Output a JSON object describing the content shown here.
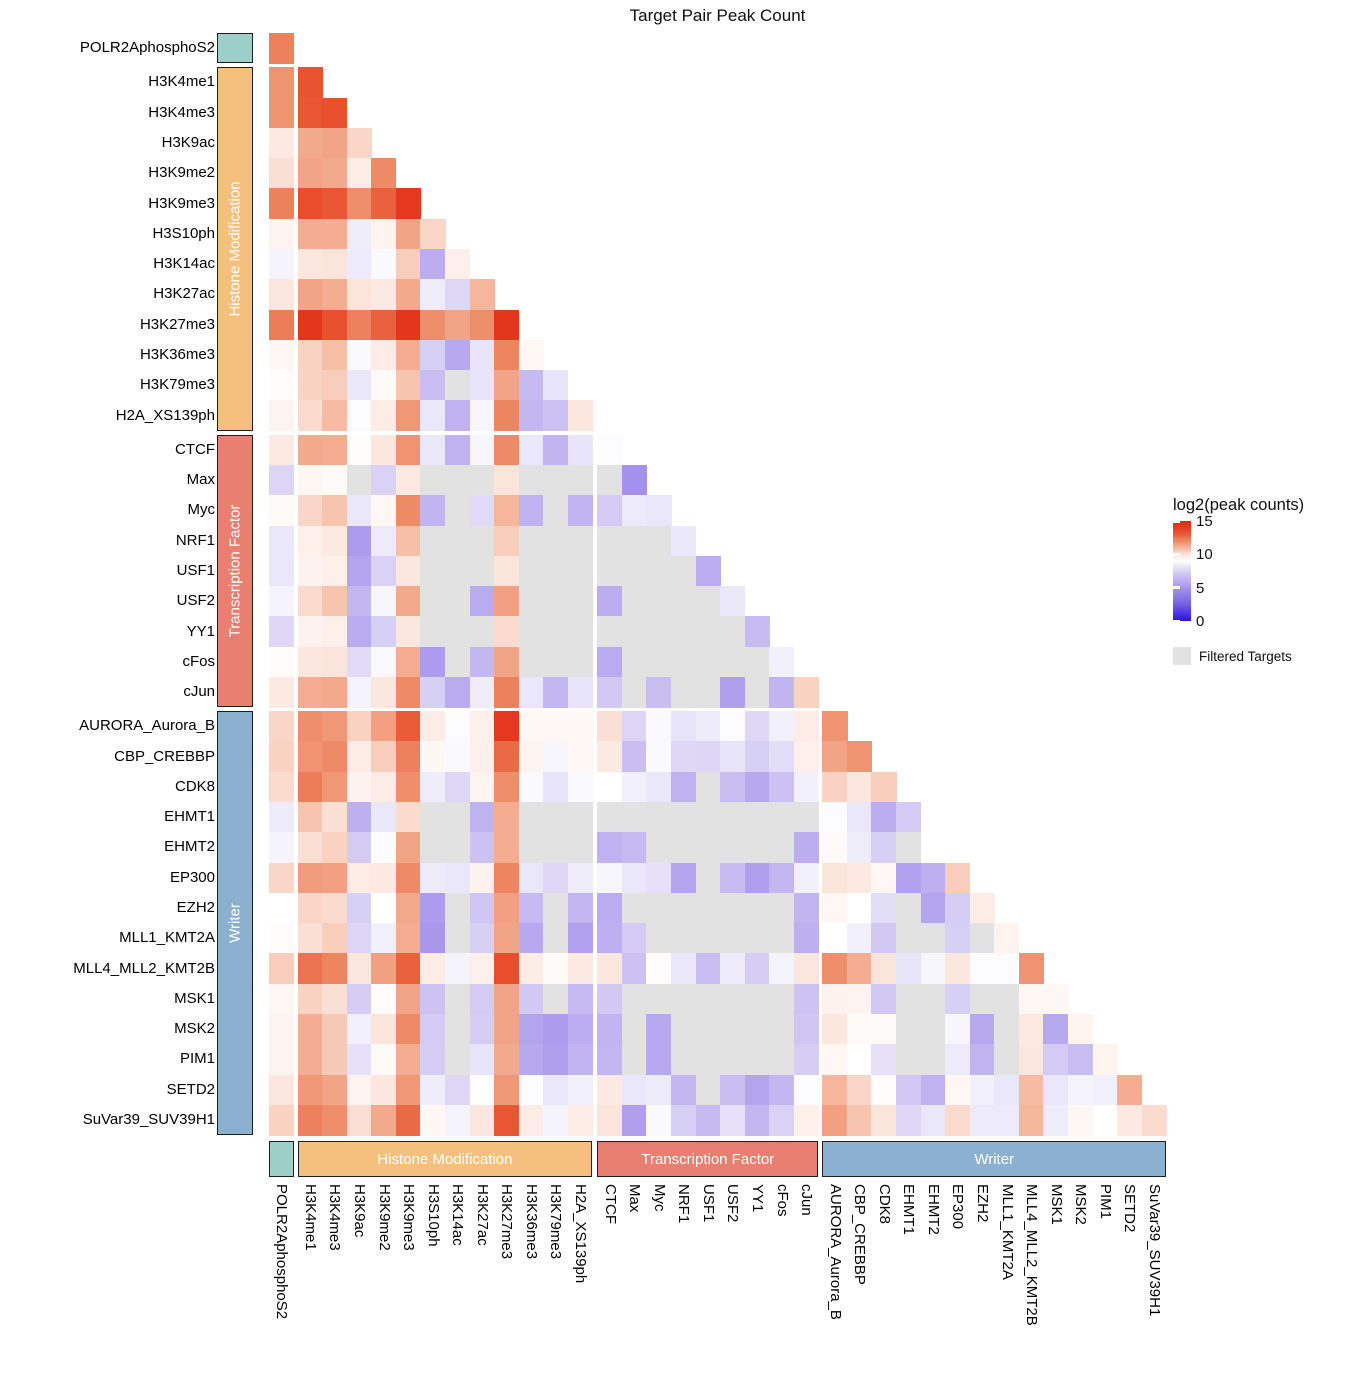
{
  "title": "Target Pair Peak Count",
  "legend": {
    "title": "log2(peak counts)",
    "tick_labels": [
      "15",
      "10",
      "5",
      "0"
    ],
    "filtered_label": "Filtered Targets"
  },
  "groups": [
    {
      "id": "polr2a",
      "label": "",
      "color": "#9bcfc7",
      "start": 0,
      "end": 0
    },
    {
      "id": "histone",
      "label": "Histone Modification",
      "color": "#f5c07e",
      "start": 1,
      "end": 12
    },
    {
      "id": "tf",
      "label": "Transcription Factor",
      "color": "#e87f70",
      "start": 13,
      "end": 21
    },
    {
      "id": "writer",
      "label": "Writer",
      "color": "#8bb0d0",
      "start": 22,
      "end": 35
    }
  ],
  "chart_data": {
    "type": "heatmap",
    "title": "Target Pair Peak Count",
    "value_label": "log2(peak counts)",
    "value_range": [
      0,
      15
    ],
    "legend_ticks": [
      15,
      10,
      5,
      0
    ],
    "shape": "lower-triangle",
    "filtered_marker": "F",
    "filtered_color": "#e2e2e2",
    "filtered_label": "Filtered Targets",
    "color_scale": {
      "stops": [
        [
          0,
          "#2b10e8"
        ],
        [
          2.5,
          "#7660e2"
        ],
        [
          5,
          "#a795ec"
        ],
        [
          7.5,
          "#d9d2f5"
        ],
        [
          9,
          "#ffffff"
        ],
        [
          10,
          "#fbe4da"
        ],
        [
          11,
          "#f5b69c"
        ],
        [
          12,
          "#ee8a66"
        ],
        [
          13,
          "#e95c38"
        ],
        [
          14,
          "#e63d20"
        ],
        [
          15,
          "#dd2a16"
        ]
      ]
    },
    "targets": [
      "POLR2AphosphoS2",
      "H3K4me1",
      "H3K4me3",
      "H3K9ac",
      "H3K9me2",
      "H3K9me3",
      "H3S10ph",
      "H3K14ac",
      "H3K27ac",
      "H3K27me3",
      "H3K36me3",
      "H3K79me3",
      "H2A_XS139ph",
      "CTCF",
      "Max",
      "Myc",
      "NRF1",
      "USF1",
      "USF2",
      "YY1",
      "cFos",
      "cJun",
      "AURORA_Aurora_B",
      "CBP_CREBBP",
      "CDK8",
      "EHMT1",
      "EHMT2",
      "EP300",
      "EZH2",
      "MLL1_KMT2A",
      "MLL4_MLL2_KMT2B",
      "MSK1",
      "MSK2",
      "PIM1",
      "SETD2",
      "SuVar39_SUV39H1"
    ],
    "matrix": [
      [
        12.2
      ],
      [
        11.8,
        13.3
      ],
      [
        11.8,
        13.2,
        13.4
      ],
      [
        9.8,
        11.3,
        11.4,
        10.3
      ],
      [
        10.1,
        11.4,
        11.3,
        9.7,
        12.0
      ],
      [
        12.2,
        13.5,
        13.2,
        11.9,
        12.9,
        14.2
      ],
      [
        9.4,
        11.2,
        11.2,
        8.4,
        9.4,
        11.4,
        10.3
      ],
      [
        8.6,
        9.9,
        10.0,
        8.3,
        8.8,
        10.5,
        6.0,
        9.6
      ],
      [
        9.9,
        11.4,
        11.2,
        10.0,
        9.8,
        11.3,
        8.4,
        7.7,
        11.0
      ],
      [
        12.3,
        14.3,
        13.4,
        12.2,
        12.9,
        14.3,
        11.9,
        11.4,
        11.9,
        14.3
      ],
      [
        9.3,
        10.4,
        10.8,
        8.8,
        9.7,
        11.2,
        7.4,
        5.8,
        8.1,
        12.1,
        9.3
      ],
      [
        9.1,
        10.4,
        10.5,
        8.2,
        9.2,
        10.7,
        6.7,
        "F",
        8.1,
        11.4,
        6.5,
        8.1
      ],
      [
        9.4,
        10.2,
        10.9,
        8.9,
        9.7,
        11.7,
        8.2,
        6.2,
        8.7,
        12.1,
        6.4,
        6.8,
        9.9
      ],
      [
        9.8,
        11.3,
        11.2,
        9.1,
        9.9,
        11.8,
        8.2,
        6.2,
        8.7,
        12.0,
        8.2,
        6.3,
        8.1,
        8.9
      ],
      [
        7.6,
        9.3,
        9.2,
        "F",
        7.5,
        9.8,
        "F",
        "F",
        "F",
        10.0,
        "F",
        "F",
        "F",
        "F",
        4.8
      ],
      [
        9.2,
        10.3,
        10.7,
        8.2,
        9.3,
        12.0,
        6.3,
        "F",
        7.8,
        11.0,
        6.2,
        "F",
        6.3,
        7.2,
        8.3,
        8.2
      ],
      [
        8.2,
        9.6,
        9.8,
        5.3,
        8.3,
        10.8,
        "F",
        "F",
        "F",
        10.5,
        "F",
        "F",
        "F",
        "F",
        "F",
        "F",
        8.2
      ],
      [
        8.2,
        9.5,
        9.6,
        5.6,
        7.5,
        9.9,
        "F",
        "F",
        "F",
        10.0,
        "F",
        "F",
        "F",
        "F",
        "F",
        "F",
        "F",
        6.0
      ],
      [
        8.6,
        10.2,
        10.7,
        6.4,
        8.7,
        11.3,
        "F",
        "F",
        5.9,
        11.5,
        "F",
        "F",
        "F",
        6.0,
        "F",
        "F",
        "F",
        "F",
        8.2
      ],
      [
        7.7,
        9.5,
        9.6,
        5.9,
        7.4,
        9.9,
        "F",
        "F",
        "F",
        10.2,
        "F",
        "F",
        "F",
        "F",
        "F",
        "F",
        "F",
        "F",
        "F",
        6.6
      ],
      [
        9.1,
        9.9,
        10.0,
        7.8,
        8.8,
        11.2,
        5.3,
        "F",
        6.4,
        11.4,
        "F",
        "F",
        "F",
        5.9,
        "F",
        "F",
        "F",
        "F",
        "F",
        "F",
        8.5
      ],
      [
        9.8,
        11.2,
        11.3,
        8.6,
        9.9,
        12.0,
        7.4,
        5.9,
        8.4,
        12.2,
        8.2,
        6.4,
        8.1,
        7.1,
        "F",
        6.7,
        "F",
        "F",
        5.4,
        "F",
        6.3,
        10.4
      ],
      [
        10.3,
        11.9,
        11.7,
        10.4,
        11.5,
        13.0,
        9.7,
        8.9,
        9.6,
        14.2,
        9.3,
        9.3,
        9.3,
        10.1,
        7.6,
        8.8,
        8.1,
        8.3,
        8.9,
        7.7,
        8.5,
        9.7,
        11.8
      ],
      [
        10.4,
        11.8,
        12.0,
        9.7,
        10.5,
        12.2,
        9.3,
        8.8,
        9.6,
        12.7,
        9.4,
        8.7,
        9.3,
        9.8,
        6.7,
        8.8,
        7.7,
        7.6,
        8.1,
        7.4,
        7.9,
        9.6,
        11.4,
        11.8
      ],
      [
        10.2,
        12.3,
        11.7,
        9.5,
        9.7,
        11.9,
        8.4,
        7.7,
        9.4,
        11.9,
        8.8,
        8.1,
        8.8,
        9.0,
        8.5,
        8.2,
        6.2,
        "F",
        6.7,
        5.8,
        6.8,
        8.5,
        10.4,
        9.9,
        10.5
      ],
      [
        8.3,
        10.7,
        10.1,
        6.1,
        8.2,
        10.2,
        "F",
        "F",
        6.2,
        11.2,
        "F",
        "F",
        "F",
        "F",
        "F",
        "F",
        "F",
        "F",
        "F",
        "F",
        "F",
        "F",
        8.9,
        8.2,
        6.0,
        7.2
      ],
      [
        8.6,
        10.1,
        10.4,
        7.2,
        8.9,
        11.4,
        "F",
        "F",
        6.8,
        11.2,
        "F",
        "F",
        "F",
        6.2,
        6.5,
        "F",
        "F",
        "F",
        "F",
        "F",
        "F",
        6.0,
        9.2,
        8.4,
        7.4,
        "F",
        9.0
      ],
      [
        10.3,
        11.6,
        11.5,
        9.7,
        9.8,
        12.0,
        8.3,
        8.2,
        9.5,
        12.1,
        8.2,
        7.7,
        8.4,
        8.7,
        8.2,
        8.0,
        5.6,
        "F",
        6.6,
        5.4,
        6.4,
        8.5,
        10.0,
        9.8,
        9.3,
        5.5,
        6.1,
        10.5
      ],
      [
        9.0,
        10.3,
        10.2,
        7.4,
        9.0,
        11.3,
        5.3,
        "F",
        7.0,
        11.5,
        6.5,
        "F",
        6.4,
        6.0,
        "F",
        "F",
        "F",
        "F",
        "F",
        "F",
        "F",
        6.3,
        9.3,
        9.0,
        7.9,
        "F",
        5.6,
        7.3,
        9.7
      ],
      [
        9.1,
        10.1,
        10.5,
        7.6,
        8.5,
        11.2,
        5.1,
        "F",
        7.4,
        11.4,
        5.8,
        "F",
        5.5,
        6.1,
        7.2,
        "F",
        "F",
        "F",
        "F",
        "F",
        "F",
        6.1,
        9.0,
        8.5,
        7.1,
        "F",
        "F",
        7.4,
        "F",
        9.4
      ],
      [
        10.5,
        12.5,
        12.1,
        9.9,
        11.5,
        12.9,
        9.7,
        8.6,
        9.6,
        13.5,
        9.7,
        9.2,
        9.8,
        9.9,
        6.8,
        9.1,
        8.2,
        6.7,
        8.3,
        7.3,
        8.6,
        9.9,
        11.9,
        11.2,
        10.0,
        8.1,
        8.7,
        9.9,
        8.9,
        8.9,
        11.8
      ],
      [
        9.3,
        10.4,
        10.1,
        7.3,
        9.1,
        11.4,
        6.9,
        "F",
        7.2,
        11.4,
        7.1,
        "F",
        6.5,
        7.1,
        "F",
        "F",
        "F",
        "F",
        "F",
        "F",
        "F",
        6.9,
        9.5,
        9.4,
        7.1,
        "F",
        "F",
        7.4,
        "F",
        "F",
        9.3,
        9.3
      ],
      [
        9.4,
        11.2,
        10.6,
        8.5,
        10.0,
        12.0,
        7.2,
        "F",
        7.3,
        11.4,
        5.6,
        5.3,
        6.0,
        6.3,
        "F",
        5.8,
        "F",
        "F",
        "F",
        "F",
        "F",
        7.0,
        9.9,
        9.2,
        9.2,
        "F",
        "F",
        8.7,
        5.8,
        "F",
        9.8,
        5.8,
        9.4
      ],
      [
        9.4,
        11.2,
        10.6,
        8.0,
        9.2,
        11.2,
        7.3,
        "F",
        8.1,
        11.3,
        5.8,
        5.4,
        6.3,
        6.4,
        "F",
        5.8,
        "F",
        "F",
        "F",
        "F",
        "F",
        7.3,
        9.3,
        9.0,
        8.0,
        "F",
        "F",
        8.3,
        6.3,
        "F",
        9.9,
        7.2,
        6.7,
        9.4
      ],
      [
        9.9,
        11.7,
        11.4,
        9.4,
        9.9,
        11.7,
        8.4,
        7.7,
        9.0,
        11.7,
        8.9,
        8.2,
        8.5,
        9.8,
        8.2,
        8.3,
        6.4,
        "F",
        6.7,
        5.6,
        6.4,
        8.9,
        11.0,
        10.3,
        9.1,
        7.1,
        6.2,
        9.3,
        8.5,
        8.2,
        10.9,
        8.2,
        8.6,
        8.5,
        11.2
      ],
      [
        10.4,
        12.2,
        11.9,
        10.1,
        11.3,
        12.7,
        9.3,
        8.6,
        9.9,
        13.2,
        9.7,
        8.6,
        9.7,
        10.0,
        5.4,
        8.8,
        7.4,
        6.5,
        8.0,
        6.4,
        7.5,
        9.6,
        11.5,
        10.7,
        10.0,
        7.7,
        8.2,
        10.2,
        8.3,
        8.3,
        11.0,
        8.4,
        9.3,
        9.0,
        9.8,
        10.2
      ]
    ]
  }
}
